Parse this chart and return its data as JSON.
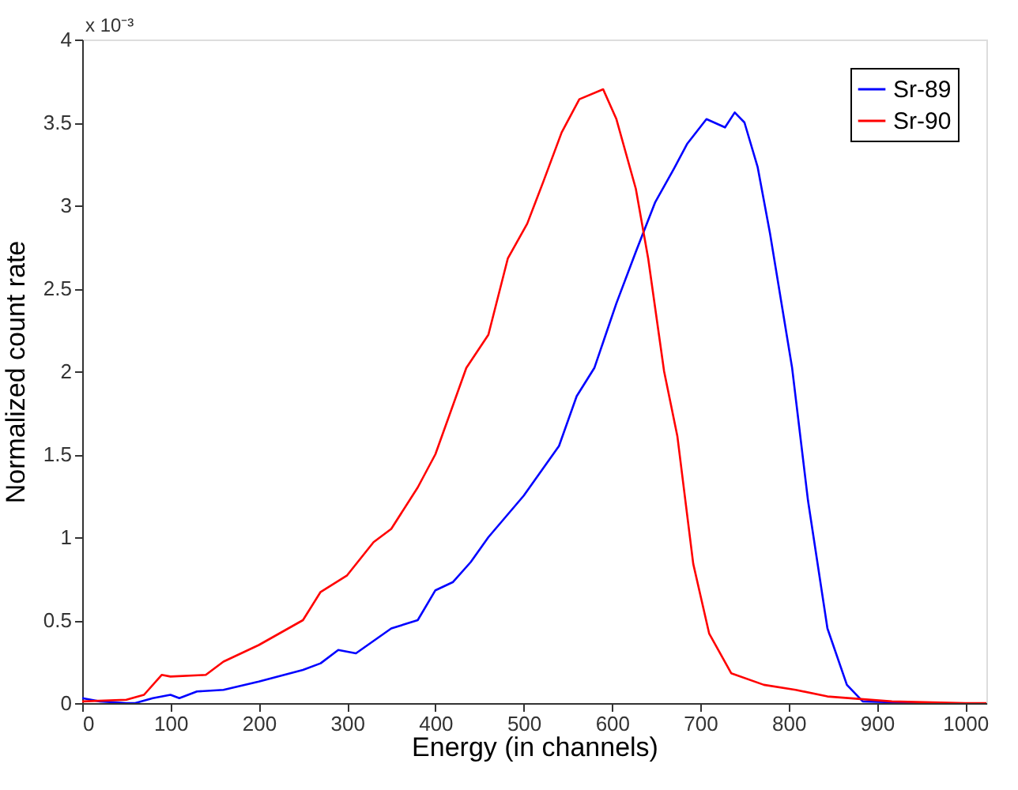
{
  "chart_data": {
    "type": "line",
    "xlabel": "Energy (in channels)",
    "ylabel": "Normalized count rate",
    "annotations": [
      "x 10⁻³"
    ],
    "xlim": [
      0,
      1024
    ],
    "xticks": [
      0,
      100,
      200,
      300,
      400,
      500,
      600,
      700,
      800,
      900,
      1000
    ],
    "ylim": [
      0,
      4
    ],
    "yticks": [
      0,
      0.5,
      1,
      1.5,
      2,
      2.5,
      3,
      3.5,
      4
    ],
    "grid": false,
    "legend": "top right",
    "marker": "none",
    "line_style": "solid",
    "series": [
      {
        "name": "Sr-89",
        "color": "#0000ff",
        "x": [
          0,
          20,
          50,
          60,
          80,
          100,
          110,
          130,
          160,
          200,
          250,
          270,
          290,
          310,
          350,
          380,
          400,
          420,
          440,
          460,
          500,
          520,
          540,
          560,
          580,
          605,
          627,
          649,
          670,
          685,
          707,
          728,
          739,
          750,
          765,
          779,
          804,
          822,
          844,
          866,
          884,
          950
        ],
        "values": [
          0.03,
          0.01,
          0,
          0,
          0.03,
          0.05,
          0.03,
          0.07,
          0.08,
          0.13,
          0.2,
          0.24,
          0.32,
          0.3,
          0.45,
          0.5,
          0.68,
          0.73,
          0.85,
          1.0,
          1.25,
          1.4,
          1.55,
          1.85,
          2.02,
          2.41,
          2.72,
          3.02,
          3.22,
          3.37,
          3.52,
          3.47,
          3.56,
          3.5,
          3.23,
          2.83,
          2.02,
          1.22,
          0.45,
          0.11,
          0.01,
          0
        ]
      },
      {
        "name": "Sr-90",
        "color": "#ff0000",
        "x": [
          0,
          50,
          70,
          90,
          100,
          140,
          160,
          200,
          250,
          270,
          300,
          330,
          350,
          380,
          400,
          435,
          460,
          482,
          504,
          522,
          543,
          563,
          590,
          605,
          627,
          641,
          659,
          674,
          692,
          710,
          735,
          772,
          808,
          844,
          917,
          1000,
          1024
        ],
        "values": [
          0.01,
          0.02,
          0.05,
          0.17,
          0.16,
          0.17,
          0.25,
          0.35,
          0.5,
          0.67,
          0.77,
          0.97,
          1.05,
          1.3,
          1.5,
          2.02,
          2.22,
          2.68,
          2.89,
          3.14,
          3.44,
          3.64,
          3.7,
          3.52,
          3.1,
          2.68,
          2.0,
          1.61,
          0.84,
          0.42,
          0.18,
          0.11,
          0.08,
          0.04,
          0.01,
          0,
          0
        ]
      }
    ]
  }
}
